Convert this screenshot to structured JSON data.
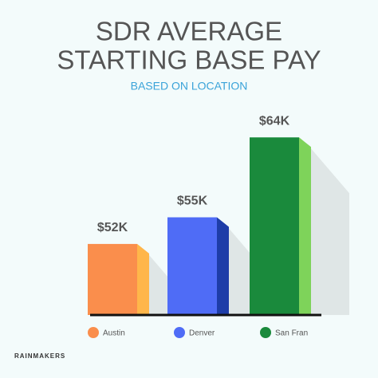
{
  "chart_data": {
    "type": "bar",
    "title": [
      "SDR AVERAGE",
      "STARTING BASE PAY"
    ],
    "subtitle": "BASED ON LOCATION",
    "categories": [
      "Austin",
      "Denver",
      "San Fran"
    ],
    "values": [
      52,
      55,
      64
    ],
    "value_labels": [
      "$52K",
      "$55K",
      "$64K"
    ],
    "colors": [
      "#fa8e4c",
      "#4f6cf6",
      "#1a8a3c"
    ],
    "side_colors": [
      "#ffb64a",
      "#1e3da8",
      "#7ed35a"
    ],
    "ylim": [
      44,
      66
    ],
    "logo": "RAINMAKERS"
  }
}
